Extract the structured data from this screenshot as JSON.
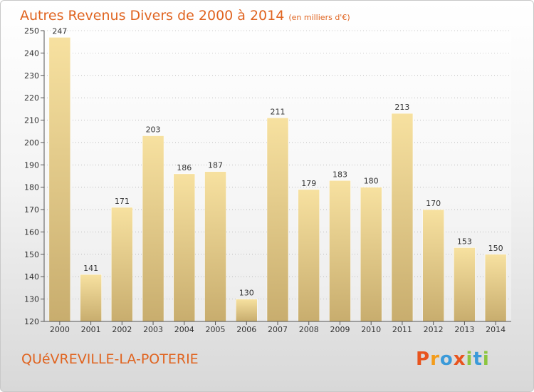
{
  "title": "Autres Revenus Divers de 2000 à 2014",
  "subtitle": "(en milliers d'€)",
  "commune": "QUéVREVILLE-LA-POTERIE",
  "brand": {
    "letters": [
      "P",
      "r",
      "o",
      "x",
      "i",
      "t",
      "i"
    ],
    "colors": [
      "#e8541e",
      "#f39c1b",
      "#3b9ad9",
      "#e8541e",
      "#8cc63f",
      "#3b9ad9",
      "#8cc63f"
    ]
  },
  "colors": {
    "title": "#e06420",
    "bar_light": "#f7e1a0",
    "bar_dark": "#c8ad6e",
    "axis": "#555555",
    "grid": "#999999"
  },
  "chart_data": {
    "type": "bar",
    "categories": [
      "2000",
      "2001",
      "2002",
      "2003",
      "2004",
      "2005",
      "2006",
      "2007",
      "2008",
      "2009",
      "2010",
      "2011",
      "2012",
      "2013",
      "2014"
    ],
    "values": [
      247,
      141,
      171,
      203,
      186,
      187,
      130,
      211,
      179,
      183,
      180,
      213,
      170,
      153,
      150
    ],
    "ylim": [
      120,
      250
    ],
    "yticks": [
      120,
      130,
      140,
      150,
      160,
      170,
      180,
      190,
      200,
      210,
      220,
      230,
      240,
      250
    ],
    "grid": true,
    "legend": "none"
  }
}
